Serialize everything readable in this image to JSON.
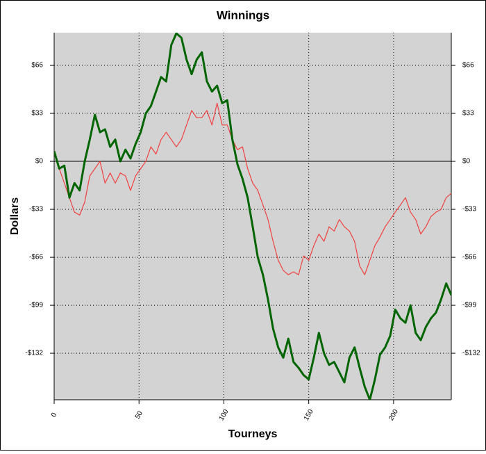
{
  "chart_data": {
    "type": "line",
    "title": "Winnings",
    "xlabel": "Tourneys",
    "ylabel": "Dollars",
    "x": [
      0,
      3,
      6,
      9,
      12,
      15,
      18,
      21,
      24,
      27,
      30,
      33,
      36,
      39,
      42,
      45,
      48,
      51,
      54,
      57,
      60,
      63,
      66,
      69,
      72,
      75,
      78,
      81,
      84,
      87,
      90,
      93,
      96,
      99,
      102,
      105,
      108,
      111,
      114,
      117,
      120,
      123,
      126,
      129,
      132,
      135,
      138,
      141,
      144,
      147,
      150,
      153,
      156,
      159,
      162,
      165,
      168,
      171,
      174,
      177,
      180,
      183,
      186,
      189,
      192,
      195,
      198,
      201,
      204,
      207,
      210,
      213,
      216,
      219,
      222,
      225,
      228,
      231,
      234
    ],
    "series": [
      {
        "color": "#006400",
        "width": 3,
        "values": [
          7,
          -5,
          -3,
          -25,
          -15,
          -20,
          0,
          15,
          32,
          20,
          22,
          10,
          15,
          0,
          8,
          2,
          12,
          20,
          33,
          38,
          48,
          58,
          55,
          80,
          88,
          85,
          70,
          60,
          70,
          75,
          55,
          48,
          52,
          40,
          42,
          15,
          -2,
          -12,
          -25,
          -45,
          -66,
          -78,
          -95,
          -115,
          -128,
          -135,
          -122,
          -138,
          -142,
          -147,
          -150,
          -135,
          -118,
          -132,
          -140,
          -138,
          -145,
          -152,
          -135,
          -128,
          -142,
          -155,
          -164,
          -150,
          -133,
          -128,
          -120,
          -102,
          -108,
          -111,
          -99,
          -118,
          -123,
          -114,
          -108,
          -104,
          -95,
          -84,
          -92
        ]
      },
      {
        "color": "#f04040",
        "width": 1.2,
        "values": [
          5,
          -5,
          -15,
          -25,
          -35,
          -37,
          -28,
          -10,
          -5,
          0,
          -15,
          -8,
          -15,
          -8,
          -10,
          -20,
          -10,
          -5,
          0,
          10,
          5,
          15,
          20,
          15,
          10,
          15,
          25,
          35,
          30,
          30,
          35,
          25,
          40,
          25,
          25,
          15,
          8,
          10,
          -5,
          -15,
          -20,
          -30,
          -40,
          -55,
          -68,
          -75,
          -78,
          -76,
          -78,
          -65,
          -68,
          -58,
          -50,
          -55,
          -45,
          -48,
          -40,
          -45,
          -48,
          -55,
          -72,
          -78,
          -68,
          -58,
          -52,
          -45,
          -40,
          -35,
          -30,
          -25,
          -35,
          -40,
          -50,
          -45,
          -38,
          -35,
          -33,
          -25,
          -22
        ]
      }
    ],
    "xlim": [
      0,
      234
    ],
    "xticks": [
      0,
      50,
      100,
      150,
      200
    ],
    "ylim": [
      -164,
      88.5
    ],
    "yticks": [
      {
        "value": -132,
        "label": "-$132"
      },
      {
        "value": -99,
        "label": "-$99"
      },
      {
        "value": -66,
        "label": "-$66"
      },
      {
        "value": -33,
        "label": "-$33"
      },
      {
        "value": 0,
        "label": "$0"
      },
      {
        "value": 33,
        "label": "$33"
      },
      {
        "value": 66,
        "label": "$66"
      }
    ],
    "grid": true
  }
}
